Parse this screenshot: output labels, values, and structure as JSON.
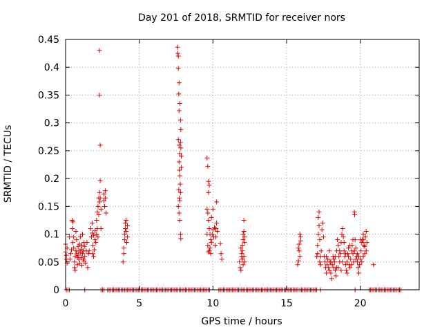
{
  "chart_data": {
    "type": "scatter",
    "title": "Day 201 of 2018, SRMTID for receiver nors",
    "xlabel": "GPS time / hours",
    "ylabel": "SRMTID / TECUs",
    "xlim": [
      0,
      24
    ],
    "ylim": [
      0,
      0.45
    ],
    "xticks": [
      0,
      5,
      10,
      15,
      20
    ],
    "yticks": [
      0,
      0.05,
      0.1,
      0.15,
      0.2,
      0.25,
      0.3,
      0.35,
      0.4,
      0.45
    ],
    "ytick_labels": [
      "0",
      "0.05",
      "0.1",
      "0.15",
      "0.2",
      "0.25",
      "0.3",
      "0.35",
      "0.4",
      "0.45"
    ],
    "xtick_labels": [
      "0",
      "5",
      "10",
      "15",
      "20"
    ],
    "grid": true,
    "marker": "+",
    "color": "#dd0000",
    "series": [
      {
        "name": "SRMTID",
        "points": [
          [
            0.0,
            0.082
          ],
          [
            0.0,
            0.068
          ],
          [
            0.05,
            0.062
          ],
          [
            0.05,
            0.055
          ],
          [
            0.1,
            0.048
          ],
          [
            0.1,
            0.075
          ],
          [
            0.25,
            0.095
          ],
          [
            0.3,
            0.055
          ],
          [
            0.35,
            0.065
          ],
          [
            0.4,
            0.072
          ],
          [
            0.45,
            0.125
          ],
          [
            0.45,
            0.11
          ],
          [
            0.5,
            0.122
          ],
          [
            0.5,
            0.085
          ],
          [
            0.55,
            0.075
          ],
          [
            0.55,
            0.095
          ],
          [
            0.6,
            0.05
          ],
          [
            0.6,
            0.04
          ],
          [
            0.65,
            0.035
          ],
          [
            0.65,
            0.06
          ],
          [
            0.7,
            0.07
          ],
          [
            0.7,
            0.105
          ],
          [
            0.75,
            0.065
          ],
          [
            0.75,
            0.09
          ],
          [
            0.8,
            0.058
          ],
          [
            0.8,
            0.045
          ],
          [
            0.85,
            0.062
          ],
          [
            0.85,
            0.078
          ],
          [
            0.9,
            0.07
          ],
          [
            0.9,
            0.055
          ],
          [
            0.95,
            0.082
          ],
          [
            0.95,
            0.048
          ],
          [
            1.0,
            0.067
          ],
          [
            1.0,
            0.095
          ],
          [
            1.05,
            0.058
          ],
          [
            1.05,
            0.073
          ],
          [
            1.1,
            0.08
          ],
          [
            1.1,
            0.044
          ],
          [
            1.15,
            0.065
          ],
          [
            1.15,
            0.1
          ],
          [
            1.2,
            0.055
          ],
          [
            1.2,
            0.07
          ],
          [
            1.25,
            0.085
          ],
          [
            1.25,
            0.052
          ],
          [
            1.3,
            0.06
          ],
          [
            1.3,
            0.078
          ],
          [
            1.35,
            0.048
          ],
          [
            1.4,
            0.07
          ],
          [
            1.45,
            0.085
          ],
          [
            1.5,
            0.04
          ],
          [
            1.55,
            0.065
          ],
          [
            1.6,
            0.07
          ],
          [
            1.7,
            0.11
          ],
          [
            1.75,
            0.095
          ],
          [
            1.8,
            0.102
          ],
          [
            1.8,
            0.12
          ],
          [
            1.85,
            0.065
          ],
          [
            1.85,
            0.08
          ],
          [
            1.9,
            0.06
          ],
          [
            1.9,
            0.098
          ],
          [
            1.95,
            0.072
          ],
          [
            2.0,
            0.09
          ],
          [
            2.0,
            0.106
          ],
          [
            2.05,
            0.085
          ],
          [
            2.1,
            0.1
          ],
          [
            2.1,
            0.125
          ],
          [
            2.15,
            0.11
          ],
          [
            2.15,
            0.14
          ],
          [
            2.2,
            0.095
          ],
          [
            2.2,
            0.15
          ],
          [
            2.25,
            0.165
          ],
          [
            2.25,
            0.135
          ],
          [
            2.3,
            0.158
          ],
          [
            2.3,
            0.43
          ],
          [
            2.3,
            0.35
          ],
          [
            2.3,
            0.175
          ],
          [
            2.35,
            0.26
          ],
          [
            2.35,
            0.196
          ],
          [
            2.35,
            0.165
          ],
          [
            2.4,
            0.145
          ],
          [
            2.4,
            0.11
          ],
          [
            2.6,
            0.16
          ],
          [
            2.6,
            0.172
          ],
          [
            2.65,
            0.15
          ],
          [
            2.7,
            0.178
          ],
          [
            2.7,
            0.165
          ],
          [
            2.75,
            0.138
          ],
          [
            3.9,
            0.05
          ],
          [
            3.95,
            0.065
          ],
          [
            3.95,
            0.075
          ],
          [
            4.0,
            0.09
          ],
          [
            4.0,
            0.1
          ],
          [
            4.05,
            0.11
          ],
          [
            4.05,
            0.12
          ],
          [
            4.1,
            0.125
          ],
          [
            4.1,
            0.105
          ],
          [
            4.15,
            0.085
          ],
          [
            4.2,
            0.095
          ],
          [
            4.2,
            0.115
          ],
          [
            7.6,
            0.436
          ],
          [
            7.62,
            0.425
          ],
          [
            7.65,
            0.42
          ],
          [
            7.65,
            0.398
          ],
          [
            7.7,
            0.372
          ],
          [
            7.68,
            0.352
          ],
          [
            7.7,
            0.322
          ],
          [
            7.75,
            0.335
          ],
          [
            7.65,
            0.27
          ],
          [
            7.7,
            0.26
          ],
          [
            7.75,
            0.245
          ],
          [
            7.8,
            0.305
          ],
          [
            7.82,
            0.288
          ],
          [
            7.7,
            0.23
          ],
          [
            7.72,
            0.215
          ],
          [
            7.75,
            0.205
          ],
          [
            7.78,
            0.19
          ],
          [
            7.8,
            0.175
          ],
          [
            7.65,
            0.15
          ],
          [
            7.7,
            0.138
          ],
          [
            7.75,
            0.125
          ],
          [
            7.8,
            0.1
          ],
          [
            7.82,
            0.092
          ],
          [
            7.75,
            0.16
          ],
          [
            7.8,
            0.265
          ],
          [
            7.82,
            0.255
          ],
          [
            7.85,
            0.24
          ],
          [
            7.68,
            0.18
          ],
          [
            7.72,
            0.165
          ],
          [
            7.85,
            0.22
          ],
          [
            9.6,
            0.237
          ],
          [
            9.65,
            0.222
          ],
          [
            9.7,
            0.195
          ],
          [
            9.75,
            0.188
          ],
          [
            9.7,
            0.175
          ],
          [
            9.6,
            0.145
          ],
          [
            9.65,
            0.138
          ],
          [
            9.7,
            0.125
          ],
          [
            9.75,
            0.11
          ],
          [
            9.8,
            0.1
          ],
          [
            9.85,
            0.09
          ],
          [
            9.9,
            0.085
          ],
          [
            9.6,
            0.1
          ],
          [
            9.65,
            0.08
          ],
          [
            9.7,
            0.068
          ],
          [
            9.75,
            0.07
          ],
          [
            9.8,
            0.075
          ],
          [
            9.85,
            0.065
          ],
          [
            9.95,
            0.1
          ],
          [
            10.0,
            0.108
          ],
          [
            10.05,
            0.095
          ],
          [
            10.1,
            0.112
          ],
          [
            10.15,
            0.08
          ],
          [
            10.2,
            0.095
          ],
          [
            10.25,
            0.158
          ],
          [
            10.2,
            0.11
          ],
          [
            10.25,
            0.12
          ],
          [
            10.3,
            0.105
          ],
          [
            9.9,
            0.13
          ],
          [
            10.0,
            0.145
          ],
          [
            10.5,
            0.083
          ],
          [
            10.55,
            0.065
          ],
          [
            10.6,
            0.055
          ],
          [
            11.8,
            0.05
          ],
          [
            11.85,
            0.04
          ],
          [
            11.9,
            0.035
          ],
          [
            11.95,
            0.06
          ],
          [
            12.0,
            0.07
          ],
          [
            12.0,
            0.08
          ],
          [
            12.05,
            0.09
          ],
          [
            12.05,
            0.1
          ],
          [
            12.1,
            0.105
          ],
          [
            12.1,
            0.125
          ],
          [
            12.15,
            0.095
          ],
          [
            12.15,
            0.085
          ],
          [
            11.9,
            0.075
          ],
          [
            11.95,
            0.065
          ],
          [
            12.0,
            0.055
          ],
          [
            12.05,
            0.045
          ],
          [
            12.1,
            0.06
          ],
          [
            12.15,
            0.05
          ],
          [
            15.75,
            0.045
          ],
          [
            15.8,
            0.052
          ],
          [
            15.85,
            0.07
          ],
          [
            15.85,
            0.082
          ],
          [
            15.9,
            0.1
          ],
          [
            15.95,
            0.088
          ],
          [
            15.95,
            0.095
          ],
          [
            15.9,
            0.06
          ],
          [
            15.8,
            0.075
          ],
          [
            17.05,
            0.06
          ],
          [
            17.1,
            0.065
          ],
          [
            17.1,
            0.08
          ],
          [
            17.15,
            0.1
          ],
          [
            17.15,
            0.13
          ],
          [
            17.2,
            0.14
          ],
          [
            17.2,
            0.115
          ],
          [
            17.25,
            0.09
          ],
          [
            17.25,
            0.05
          ],
          [
            17.3,
            0.06
          ],
          [
            17.3,
            0.045
          ],
          [
            17.35,
            0.07
          ],
          [
            17.4,
            0.108
          ],
          [
            17.45,
            0.12
          ],
          [
            17.5,
            0.095
          ],
          [
            17.55,
            0.06
          ],
          [
            17.6,
            0.05
          ],
          [
            17.65,
            0.04
          ],
          [
            17.7,
            0.03
          ],
          [
            17.75,
            0.045
          ],
          [
            17.8,
            0.055
          ],
          [
            17.85,
            0.04
          ],
          [
            17.9,
            0.035
          ],
          [
            17.95,
            0.05
          ],
          [
            18.0,
            0.03
          ],
          [
            18.05,
            0.02
          ],
          [
            18.1,
            0.045
          ],
          [
            18.15,
            0.06
          ],
          [
            18.2,
            0.04
          ],
          [
            18.25,
            0.05
          ],
          [
            18.3,
            0.035
          ],
          [
            18.35,
            0.025
          ],
          [
            18.4,
            0.07
          ],
          [
            18.45,
            0.09
          ],
          [
            18.5,
            0.08
          ],
          [
            18.55,
            0.06
          ],
          [
            18.6,
            0.05
          ],
          [
            18.65,
            0.065
          ],
          [
            18.7,
            0.085
          ],
          [
            18.75,
            0.1
          ],
          [
            18.8,
            0.11
          ],
          [
            18.85,
            0.095
          ],
          [
            18.9,
            0.07
          ],
          [
            18.95,
            0.06
          ],
          [
            19.0,
            0.045
          ],
          [
            19.05,
            0.035
          ],
          [
            19.1,
            0.05
          ],
          [
            19.15,
            0.065
          ],
          [
            19.2,
            0.06
          ],
          [
            19.25,
            0.045
          ],
          [
            19.3,
            0.04
          ],
          [
            19.35,
            0.055
          ],
          [
            19.4,
            0.07
          ],
          [
            19.45,
            0.08
          ],
          [
            19.5,
            0.065
          ],
          [
            19.55,
            0.05
          ],
          [
            19.6,
            0.14
          ],
          [
            19.62,
            0.135
          ],
          [
            19.65,
            0.09
          ],
          [
            19.7,
            0.075
          ],
          [
            19.75,
            0.06
          ],
          [
            19.8,
            0.05
          ],
          [
            19.85,
            0.04
          ],
          [
            19.9,
            0.03
          ],
          [
            19.95,
            0.045
          ],
          [
            20.0,
            0.055
          ],
          [
            20.05,
            0.07
          ],
          [
            20.1,
            0.085
          ],
          [
            20.15,
            0.09
          ],
          [
            20.2,
            0.1
          ],
          [
            20.25,
            0.08
          ],
          [
            20.3,
            0.065
          ],
          [
            20.35,
            0.095
          ],
          [
            20.4,
            0.105
          ],
          [
            20.45,
            0.085
          ],
          [
            18.2,
            0.055
          ],
          [
            18.5,
            0.04
          ],
          [
            18.8,
            0.05
          ],
          [
            19.1,
            0.03
          ],
          [
            19.4,
            0.045
          ],
          [
            19.7,
            0.055
          ],
          [
            20.0,
            0.09
          ],
          [
            20.2,
            0.06
          ],
          [
            20.4,
            0.07
          ],
          [
            18.0,
            0.05
          ],
          [
            18.3,
            0.06
          ],
          [
            18.6,
            0.07
          ],
          [
            18.9,
            0.085
          ],
          [
            19.2,
            0.075
          ],
          [
            19.5,
            0.09
          ],
          [
            19.8,
            0.065
          ],
          [
            20.1,
            0.05
          ],
          [
            20.3,
            0.078
          ],
          [
            17.7,
            0.06
          ],
          [
            17.9,
            0.07
          ],
          [
            18.4,
            0.04
          ],
          [
            18.7,
            0.035
          ],
          [
            19.0,
            0.065
          ],
          [
            19.3,
            0.08
          ],
          [
            19.6,
            0.07
          ],
          [
            19.9,
            0.06
          ],
          [
            20.2,
            0.09
          ],
          [
            20.9,
            0.045
          ]
        ],
        "zero_ranges": [
          [
            0.05,
            0.3
          ],
          [
            1.3,
            1.4
          ],
          [
            2.4,
            2.7
          ],
          [
            2.85,
            3.95
          ],
          [
            4.0,
            9.8
          ],
          [
            10.4,
            15.8
          ],
          [
            15.9,
            17.1
          ],
          [
            17.3,
            17.4
          ],
          [
            19.65,
            19.75
          ],
          [
            20.6,
            22.8
          ]
        ]
      }
    ]
  }
}
